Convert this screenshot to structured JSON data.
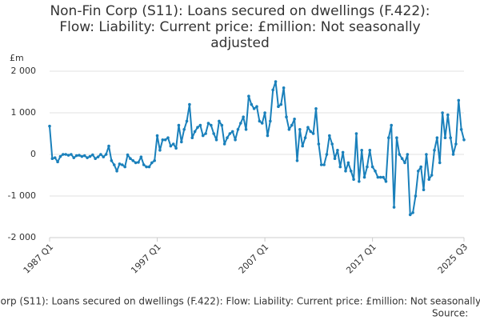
{
  "chart_data": {
    "type": "line",
    "title": "Non-Fin Corp (S11): Loans secured on dwellings (F.422): Flow: Liability: Current price: £million: Not seasonally adjusted",
    "y_unit": "£m",
    "source": "Source:",
    "categories": [
      "1987 Q1",
      null,
      null,
      null,
      null,
      null,
      null,
      null,
      null,
      null,
      null,
      null,
      null,
      null,
      null,
      null,
      null,
      null,
      null,
      null,
      null,
      null,
      null,
      null,
      null,
      null,
      null,
      null,
      null,
      null,
      null,
      null,
      null,
      null,
      null,
      null,
      null,
      null,
      null,
      null,
      "1997 Q1",
      null,
      null,
      null,
      null,
      null,
      null,
      null,
      null,
      null,
      null,
      null,
      null,
      null,
      null,
      null,
      null,
      null,
      null,
      null,
      null,
      null,
      null,
      null,
      null,
      null,
      null,
      null,
      null,
      null,
      null,
      null,
      null,
      null,
      null,
      null,
      null,
      null,
      null,
      null,
      "2007 Q1",
      null,
      null,
      null,
      null,
      null,
      null,
      null,
      null,
      null,
      null,
      null,
      null,
      null,
      null,
      null,
      null,
      null,
      null,
      null,
      null,
      null,
      null,
      null,
      null,
      null,
      null,
      null,
      null,
      null,
      null,
      null,
      null,
      null,
      null,
      null,
      null,
      null,
      null,
      null,
      "2017 Q1",
      null,
      null,
      null,
      null,
      null,
      null,
      null,
      null,
      null,
      null,
      null,
      null,
      null,
      null,
      null,
      null,
      null,
      null,
      null,
      null,
      null,
      null,
      null,
      null,
      null,
      null,
      null,
      null,
      null,
      null,
      null,
      null,
      null,
      "2025 Q3"
    ],
    "series": [
      {
        "name": "Non-Fin Corp (S11): Loans secured on dwellings (F.422): Flow: Liability: Current price: £million: Not seasonally adjusted",
        "color": "#1a80bb",
        "values": [
          680,
          -100,
          -80,
          -180,
          -50,
          0,
          0,
          -20,
          0,
          -80,
          -30,
          -20,
          -50,
          -30,
          -80,
          -50,
          -10,
          -100,
          -60,
          0,
          -60,
          0,
          200,
          -150,
          -250,
          -400,
          -230,
          -250,
          -300,
          -10,
          -100,
          -150,
          -200,
          -190,
          -60,
          -250,
          -300,
          -300,
          -200,
          -150,
          450,
          100,
          350,
          350,
          400,
          200,
          250,
          150,
          700,
          300,
          600,
          800,
          1200,
          400,
          550,
          650,
          700,
          450,
          500,
          750,
          700,
          500,
          350,
          800,
          700,
          250,
          400,
          500,
          550,
          350,
          600,
          750,
          900,
          600,
          1400,
          1200,
          1100,
          1150,
          800,
          750,
          1000,
          450,
          800,
          1550,
          1750,
          1150,
          1200,
          1600,
          900,
          600,
          700,
          850,
          -150,
          600,
          200,
          400,
          650,
          550,
          500,
          1100,
          250,
          -250,
          -250,
          0,
          450,
          250,
          -100,
          100,
          -300,
          50,
          -400,
          -200,
          -400,
          -600,
          500,
          -650,
          100,
          -550,
          -300,
          100,
          -300,
          -400,
          -550,
          -550,
          -550,
          -650,
          400,
          700,
          -1270,
          400,
          0,
          -100,
          -200,
          0,
          -1450,
          -1400,
          -1000,
          -400,
          -300,
          -850,
          0,
          -600,
          -500,
          100,
          400,
          -200,
          1000,
          400,
          950,
          400,
          0,
          250,
          1300,
          600,
          350
        ]
      }
    ],
    "ylim": [
      -2000,
      2000
    ],
    "yticks": [
      {
        "value": -2000,
        "label": "-2 000"
      },
      {
        "value": -1000,
        "label": "-1 000"
      },
      0,
      {
        "value": 1000,
        "label": "1 000"
      },
      {
        "value": 2000,
        "label": "2 000"
      }
    ],
    "grid": true
  }
}
